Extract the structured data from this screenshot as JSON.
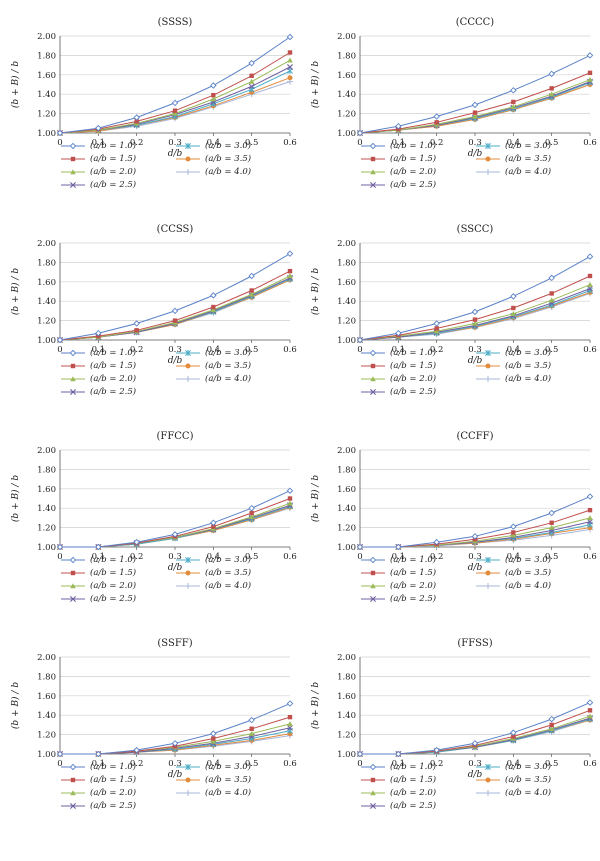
{
  "legend_labels": [
    "(a/b = 1.0)",
    "(a/b = 1.5)",
    "(a/b = 2.0)",
    "(a/b = 2.5)",
    "(a/b = 3.0)",
    "(a/b = 3.5)",
    "(a/b = 4.0)"
  ],
  "series_styles": [
    {
      "color": "#5b82c8",
      "marker": "diamond"
    },
    {
      "color": "#c0504d",
      "marker": "square"
    },
    {
      "color": "#9bbb59",
      "marker": "triangle"
    },
    {
      "color": "#7060a0",
      "marker": "x"
    },
    {
      "color": "#4bacc6",
      "marker": "star"
    },
    {
      "color": "#e38b3c",
      "marker": "circle"
    },
    {
      "color": "#a9b7db",
      "marker": "plus"
    }
  ],
  "chart_data": [
    {
      "type": "line",
      "title": "(SSSS)",
      "xlabel": "d/b",
      "ylabel": "(b + B) / b",
      "x": [
        0,
        0.1,
        0.2,
        0.3,
        0.4,
        0.5,
        0.6
      ],
      "xticks": [
        "0",
        "0.1",
        "0.2",
        "0.3",
        "0.4",
        "0.5",
        "0.6"
      ],
      "yticks": [
        "1.00",
        "1.20",
        "1.40",
        "1.60",
        "1.80",
        "2.00"
      ],
      "xlim": [
        0,
        0.6
      ],
      "ylim": [
        1.0,
        2.0
      ],
      "series": [
        {
          "name": "(a/b = 1.0)",
          "values": [
            1.0,
            1.05,
            1.16,
            1.31,
            1.49,
            1.72,
            1.99
          ]
        },
        {
          "name": "(a/b = 1.5)",
          "values": [
            1.0,
            1.04,
            1.12,
            1.23,
            1.39,
            1.59,
            1.83
          ]
        },
        {
          "name": "(a/b = 2.0)",
          "values": [
            1.0,
            1.03,
            1.1,
            1.2,
            1.35,
            1.53,
            1.75
          ]
        },
        {
          "name": "(a/b = 2.5)",
          "values": [
            1.0,
            1.03,
            1.09,
            1.19,
            1.32,
            1.48,
            1.68
          ]
        },
        {
          "name": "(a/b = 3.0)",
          "values": [
            1.0,
            1.03,
            1.08,
            1.17,
            1.3,
            1.45,
            1.64
          ]
        },
        {
          "name": "(a/b = 3.5)",
          "values": [
            1.0,
            1.02,
            1.08,
            1.16,
            1.28,
            1.42,
            1.57
          ]
        },
        {
          "name": "(a/b = 4.0)",
          "values": [
            1.0,
            1.02,
            1.07,
            1.15,
            1.27,
            1.4,
            1.53
          ]
        }
      ]
    },
    {
      "type": "line",
      "title": "(CCCC)",
      "xlabel": "d/b",
      "ylabel": "(b + B) / b",
      "x": [
        0,
        0.1,
        0.2,
        0.3,
        0.4,
        0.5,
        0.6
      ],
      "xticks": [
        "0",
        "0.1",
        "0.2",
        "0.3",
        "0.4",
        "0.5",
        "0.6"
      ],
      "yticks": [
        "1.00",
        "1.20",
        "1.40",
        "1.60",
        "1.80",
        "2.00"
      ],
      "xlim": [
        0,
        0.6
      ],
      "ylim": [
        1.0,
        2.0
      ],
      "series": [
        {
          "name": "(a/b = 1.0)",
          "values": [
            1.0,
            1.07,
            1.17,
            1.29,
            1.44,
            1.61,
            1.8
          ]
        },
        {
          "name": "(a/b = 1.5)",
          "values": [
            1.0,
            1.04,
            1.11,
            1.21,
            1.32,
            1.46,
            1.62
          ]
        },
        {
          "name": "(a/b = 2.0)",
          "values": [
            1.0,
            1.03,
            1.09,
            1.17,
            1.27,
            1.4,
            1.55
          ]
        },
        {
          "name": "(a/b = 2.5)",
          "values": [
            1.0,
            1.03,
            1.08,
            1.16,
            1.26,
            1.38,
            1.53
          ]
        },
        {
          "name": "(a/b = 3.0)",
          "values": [
            1.0,
            1.03,
            1.08,
            1.15,
            1.25,
            1.37,
            1.52
          ]
        },
        {
          "name": "(a/b = 3.5)",
          "values": [
            1.0,
            1.03,
            1.07,
            1.14,
            1.24,
            1.36,
            1.5
          ]
        },
        {
          "name": "(a/b = 4.0)",
          "values": [
            1.0,
            1.03,
            1.07,
            1.14,
            1.24,
            1.36,
            1.5
          ]
        }
      ]
    },
    {
      "type": "line",
      "title": "(CCSS)",
      "xlabel": "d/b",
      "ylabel": "(b + B) / b",
      "x": [
        0,
        0.1,
        0.2,
        0.3,
        0.4,
        0.5,
        0.6
      ],
      "xticks": [
        "0",
        "0.1",
        "0.2",
        "0.3",
        "0.4",
        "0.5",
        "0.6"
      ],
      "yticks": [
        "1.00",
        "1.20",
        "1.40",
        "1.60",
        "1.80",
        "2.00"
      ],
      "xlim": [
        0,
        0.6
      ],
      "ylim": [
        1.0,
        2.0
      ],
      "series": [
        {
          "name": "(a/b = 1.0)",
          "values": [
            1.0,
            1.07,
            1.17,
            1.3,
            1.46,
            1.66,
            1.89
          ]
        },
        {
          "name": "(a/b = 1.5)",
          "values": [
            1.0,
            1.04,
            1.1,
            1.2,
            1.34,
            1.51,
            1.71
          ]
        },
        {
          "name": "(a/b = 2.0)",
          "values": [
            1.0,
            1.03,
            1.09,
            1.18,
            1.31,
            1.47,
            1.66
          ]
        },
        {
          "name": "(a/b = 2.5)",
          "values": [
            1.0,
            1.03,
            1.08,
            1.17,
            1.3,
            1.46,
            1.64
          ]
        },
        {
          "name": "(a/b = 3.0)",
          "values": [
            1.0,
            1.03,
            1.08,
            1.17,
            1.29,
            1.45,
            1.63
          ]
        },
        {
          "name": "(a/b = 3.5)",
          "values": [
            1.0,
            1.03,
            1.08,
            1.16,
            1.29,
            1.44,
            1.62
          ]
        },
        {
          "name": "(a/b = 4.0)",
          "values": [
            1.0,
            1.03,
            1.08,
            1.16,
            1.28,
            1.44,
            1.62
          ]
        }
      ]
    },
    {
      "type": "line",
      "title": "(SSCC)",
      "xlabel": "d/b",
      "ylabel": "(b + B) / b",
      "x": [
        0,
        0.1,
        0.2,
        0.3,
        0.4,
        0.5,
        0.6
      ],
      "xticks": [
        "0",
        "0.1",
        "0.2",
        "0.3",
        "0.4",
        "0.5",
        "0.6"
      ],
      "yticks": [
        "1.00",
        "1.20",
        "1.40",
        "1.60",
        "1.80",
        "2.00"
      ],
      "xlim": [
        0,
        0.6
      ],
      "ylim": [
        1.0,
        2.0
      ],
      "series": [
        {
          "name": "(a/b = 1.0)",
          "values": [
            1.0,
            1.07,
            1.17,
            1.29,
            1.45,
            1.64,
            1.86
          ]
        },
        {
          "name": "(a/b = 1.5)",
          "values": [
            1.0,
            1.05,
            1.12,
            1.21,
            1.33,
            1.48,
            1.66
          ]
        },
        {
          "name": "(a/b = 2.0)",
          "values": [
            1.0,
            1.04,
            1.09,
            1.17,
            1.27,
            1.41,
            1.57
          ]
        },
        {
          "name": "(a/b = 2.5)",
          "values": [
            1.0,
            1.03,
            1.08,
            1.15,
            1.25,
            1.38,
            1.53
          ]
        },
        {
          "name": "(a/b = 3.0)",
          "values": [
            1.0,
            1.03,
            1.07,
            1.14,
            1.24,
            1.36,
            1.51
          ]
        },
        {
          "name": "(a/b = 3.5)",
          "values": [
            1.0,
            1.03,
            1.07,
            1.13,
            1.23,
            1.35,
            1.49
          ]
        },
        {
          "name": "(a/b = 4.0)",
          "values": [
            1.0,
            1.03,
            1.06,
            1.13,
            1.22,
            1.34,
            1.48
          ]
        }
      ]
    },
    {
      "type": "line",
      "title": "(FFCC)",
      "xlabel": "d/b",
      "ylabel": "(b + B) / b",
      "x": [
        0,
        0.1,
        0.2,
        0.3,
        0.4,
        0.5,
        0.6
      ],
      "xticks": [
        "0",
        "0.1",
        "0.2",
        "0.3",
        "0.4",
        "0.5",
        "0.6"
      ],
      "yticks": [
        "1.00",
        "1.20",
        "1.40",
        "1.60",
        "1.80",
        "2.00"
      ],
      "xlim": [
        0,
        0.6
      ],
      "ylim": [
        1.0,
        2.0
      ],
      "series": [
        {
          "name": "(a/b = 1.0)",
          "values": [
            1.0,
            1.0,
            1.05,
            1.13,
            1.25,
            1.4,
            1.58
          ]
        },
        {
          "name": "(a/b = 1.5)",
          "values": [
            1.0,
            1.0,
            1.04,
            1.11,
            1.21,
            1.35,
            1.5
          ]
        },
        {
          "name": "(a/b = 2.0)",
          "values": [
            1.0,
            1.0,
            1.04,
            1.1,
            1.19,
            1.31,
            1.45
          ]
        },
        {
          "name": "(a/b = 2.5)",
          "values": [
            1.0,
            1.0,
            1.04,
            1.1,
            1.18,
            1.3,
            1.43
          ]
        },
        {
          "name": "(a/b = 3.0)",
          "values": [
            1.0,
            1.0,
            1.03,
            1.09,
            1.18,
            1.29,
            1.42
          ]
        },
        {
          "name": "(a/b = 3.5)",
          "values": [
            1.0,
            1.0,
            1.03,
            1.09,
            1.17,
            1.28,
            1.41
          ]
        },
        {
          "name": "(a/b = 4.0)",
          "values": [
            1.0,
            1.0,
            1.03,
            1.09,
            1.17,
            1.28,
            1.4
          ]
        }
      ]
    },
    {
      "type": "line",
      "title": "(CCFF)",
      "xlabel": "d/b",
      "ylabel": "(b + B) / b",
      "x": [
        0,
        0.1,
        0.2,
        0.3,
        0.4,
        0.5,
        0.6
      ],
      "xticks": [
        "0",
        "0.1",
        "0.2",
        "0.3",
        "0.4",
        "0.5",
        "0.6"
      ],
      "yticks": [
        "1.00",
        "1.20",
        "1.40",
        "1.60",
        "1.80",
        "2.00"
      ],
      "xlim": [
        0,
        0.6
      ],
      "ylim": [
        1.0,
        2.0
      ],
      "series": [
        {
          "name": "(a/b = 1.0)",
          "values": [
            1.0,
            1.0,
            1.05,
            1.11,
            1.21,
            1.35,
            1.52
          ]
        },
        {
          "name": "(a/b = 1.5)",
          "values": [
            1.0,
            1.0,
            1.03,
            1.08,
            1.15,
            1.25,
            1.38
          ]
        },
        {
          "name": "(a/b = 2.0)",
          "values": [
            1.0,
            1.0,
            1.02,
            1.06,
            1.12,
            1.2,
            1.3
          ]
        },
        {
          "name": "(a/b = 2.5)",
          "values": [
            1.0,
            1.0,
            1.02,
            1.05,
            1.1,
            1.17,
            1.26
          ]
        },
        {
          "name": "(a/b = 3.0)",
          "values": [
            1.0,
            1.0,
            1.02,
            1.05,
            1.09,
            1.15,
            1.23
          ]
        },
        {
          "name": "(a/b = 3.5)",
          "values": [
            1.0,
            1.0,
            1.02,
            1.04,
            1.08,
            1.14,
            1.2
          ]
        },
        {
          "name": "(a/b = 4.0)",
          "values": [
            1.0,
            1.0,
            1.01,
            1.04,
            1.07,
            1.12,
            1.18
          ]
        }
      ]
    },
    {
      "type": "line",
      "title": "(SSFF)",
      "xlabel": "d/b",
      "ylabel": "(b + B) / b",
      "x": [
        0,
        0.1,
        0.2,
        0.3,
        0.4,
        0.5,
        0.6
      ],
      "xticks": [
        "0",
        "0.1",
        "0.2",
        "0.3",
        "0.4",
        "0.5",
        "0.6"
      ],
      "yticks": [
        "1.00",
        "1.20",
        "1.40",
        "1.60",
        "1.80",
        "2.00"
      ],
      "xlim": [
        0,
        0.6
      ],
      "ylim": [
        1.0,
        2.0
      ],
      "series": [
        {
          "name": "(a/b = 1.0)",
          "values": [
            1.0,
            1.0,
            1.04,
            1.11,
            1.21,
            1.35,
            1.52
          ]
        },
        {
          "name": "(a/b = 1.5)",
          "values": [
            1.0,
            1.0,
            1.03,
            1.08,
            1.16,
            1.26,
            1.38
          ]
        },
        {
          "name": "(a/b = 2.0)",
          "values": [
            1.0,
            1.0,
            1.03,
            1.07,
            1.13,
            1.21,
            1.31
          ]
        },
        {
          "name": "(a/b = 2.5)",
          "values": [
            1.0,
            1.0,
            1.02,
            1.06,
            1.11,
            1.18,
            1.27
          ]
        },
        {
          "name": "(a/b = 3.0)",
          "values": [
            1.0,
            1.0,
            1.02,
            1.05,
            1.1,
            1.16,
            1.24
          ]
        },
        {
          "name": "(a/b = 3.5)",
          "values": [
            1.0,
            1.0,
            1.02,
            1.04,
            1.09,
            1.14,
            1.21
          ]
        },
        {
          "name": "(a/b = 4.0)",
          "values": [
            1.0,
            1.0,
            1.02,
            1.04,
            1.08,
            1.13,
            1.19
          ]
        }
      ]
    },
    {
      "type": "line",
      "title": "(FFSS)",
      "xlabel": "d/b",
      "ylabel": "(b + B) / b",
      "x": [
        0,
        0.1,
        0.2,
        0.3,
        0.4,
        0.5,
        0.6
      ],
      "xticks": [
        "0",
        "0.1",
        "0.2",
        "0.3",
        "0.4",
        "0.5",
        "0.6"
      ],
      "yticks": [
        "1.00",
        "1.20",
        "1.40",
        "1.60",
        "1.80",
        "2.00"
      ],
      "xlim": [
        0,
        0.6
      ],
      "ylim": [
        1.0,
        2.0
      ],
      "series": [
        {
          "name": "(a/b = 1.0)",
          "values": [
            1.0,
            1.0,
            1.04,
            1.11,
            1.22,
            1.36,
            1.53
          ]
        },
        {
          "name": "(a/b = 1.5)",
          "values": [
            1.0,
            1.0,
            1.03,
            1.09,
            1.18,
            1.3,
            1.45
          ]
        },
        {
          "name": "(a/b = 2.0)",
          "values": [
            1.0,
            1.0,
            1.03,
            1.08,
            1.16,
            1.26,
            1.39
          ]
        },
        {
          "name": "(a/b = 2.5)",
          "values": [
            1.0,
            1.0,
            1.03,
            1.07,
            1.15,
            1.25,
            1.37
          ]
        },
        {
          "name": "(a/b = 3.0)",
          "values": [
            1.0,
            1.0,
            1.02,
            1.07,
            1.14,
            1.24,
            1.36
          ]
        },
        {
          "name": "(a/b = 3.5)",
          "values": [
            1.0,
            1.0,
            1.02,
            1.07,
            1.14,
            1.24,
            1.35
          ]
        },
        {
          "name": "(a/b = 4.0)",
          "values": [
            1.0,
            1.0,
            1.02,
            1.07,
            1.14,
            1.23,
            1.35
          ]
        }
      ]
    }
  ]
}
